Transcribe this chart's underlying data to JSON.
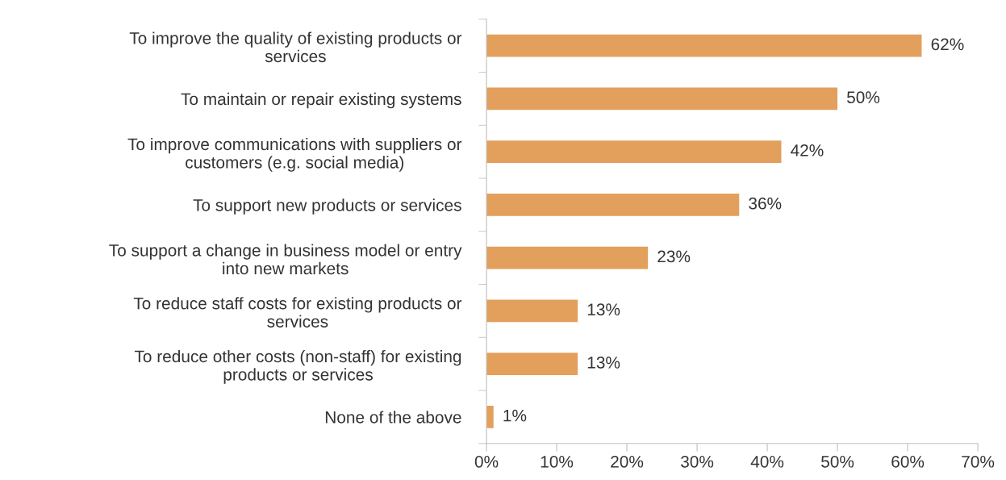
{
  "chart_data": {
    "type": "bar",
    "orientation": "horizontal",
    "categories": [
      "To improve the quality of existing products or\nservices",
      "To maintain or repair existing systems",
      "To improve communications with suppliers or\ncustomers (e.g. social media)",
      "To support new products or services",
      "To support a change in business model or entry\ninto new markets",
      "To reduce staff costs for existing products or\nservices",
      "To reduce other costs (non-staff) for existing\nproducts or services",
      "None of the above"
    ],
    "values": [
      62,
      50,
      42,
      36,
      23,
      13,
      13,
      1
    ],
    "value_labels": [
      "62%",
      "50%",
      "42%",
      "36%",
      "23%",
      "13%",
      "13%",
      "1%"
    ],
    "color": "#e39f5c",
    "xlim": [
      0,
      70
    ],
    "xticks": [
      {
        "value": 0,
        "label": "0%"
      },
      {
        "value": 10,
        "label": "10%"
      },
      {
        "value": 20,
        "label": "20%"
      },
      {
        "value": 30,
        "label": "30%"
      },
      {
        "value": 40,
        "label": "40%"
      },
      {
        "value": 50,
        "label": "50%"
      },
      {
        "value": 60,
        "label": "60%"
      },
      {
        "value": 70,
        "label": "70%"
      }
    ],
    "grid": false
  }
}
